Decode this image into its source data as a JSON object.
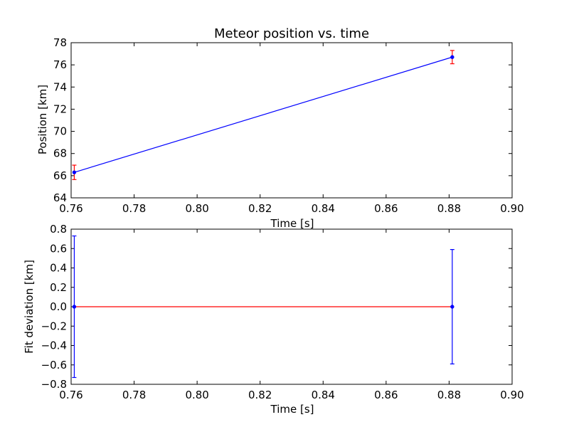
{
  "chart_data": [
    {
      "type": "line",
      "title": "Meteor position vs. time",
      "xlabel": "Time [s]",
      "ylabel": "Position [km]",
      "xlim": [
        0.76,
        0.9
      ],
      "ylim": [
        64,
        78
      ],
      "xticks": [
        "0.76",
        "0.78",
        "0.80",
        "0.82",
        "0.84",
        "0.86",
        "0.88",
        "0.90"
      ],
      "yticks": [
        "64",
        "66",
        "68",
        "70",
        "72",
        "74",
        "76",
        "78"
      ],
      "grid": false,
      "series": [
        {
          "kind": "fit-line",
          "color": "#0000ff",
          "x": [
            0.761,
            0.881
          ],
          "y": [
            66.3,
            76.7
          ]
        },
        {
          "kind": "errorbar-points",
          "color": "#ff0000",
          "x": [
            0.761,
            0.881
          ],
          "y": [
            66.3,
            76.7
          ],
          "yerr": [
            0.65,
            0.6
          ]
        }
      ]
    },
    {
      "type": "line",
      "title": "",
      "xlabel": "Time [s]",
      "ylabel": "Fit deviation [km]",
      "xlim": [
        0.76,
        0.9
      ],
      "ylim": [
        -0.8,
        0.8
      ],
      "xticks": [
        "0.76",
        "0.78",
        "0.80",
        "0.82",
        "0.84",
        "0.86",
        "0.88",
        "0.90"
      ],
      "yticks": [
        "−0.8",
        "−0.6",
        "−0.4",
        "−0.2",
        "0.0",
        "0.2",
        "0.4",
        "0.6",
        "0.8"
      ],
      "grid": false,
      "series": [
        {
          "kind": "zero-line",
          "color": "#ff0000",
          "x": [
            0.761,
            0.881
          ],
          "y": [
            0,
            0
          ]
        },
        {
          "kind": "errorbar-points",
          "color": "#0000ff",
          "x": [
            0.761,
            0.881
          ],
          "y": [
            0,
            0
          ],
          "yerr": [
            0.73,
            0.59
          ]
        }
      ]
    }
  ]
}
